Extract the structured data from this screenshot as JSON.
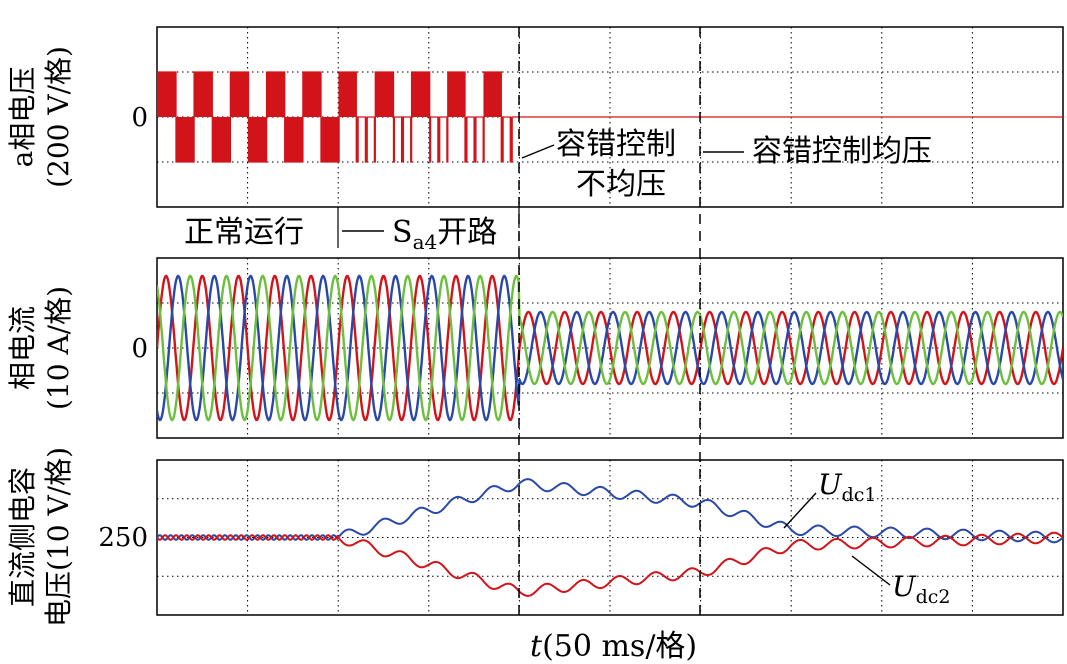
{
  "chart_data": [
    {
      "type": "line",
      "panel": "a-phase-voltage",
      "ylabel_line1": "a相电压",
      "ylabel_line2": "(200 V/格)",
      "ytick": "0",
      "xlim": [
        0,
        500
      ],
      "ylim": [
        -400,
        400
      ],
      "regions": [
        {
          "label": "正常运行",
          "x_start": 0,
          "x_end": 100
        },
        {
          "label_main": "S",
          "label_sub": "a4",
          "label_tail": "开路",
          "x_start": 100,
          "x_end": 200
        }
      ],
      "annotations": [
        {
          "line1": "容错控制",
          "line2": "不均压",
          "x": 200
        },
        {
          "line1": "容错控制均压",
          "x": 300
        }
      ],
      "levels": {
        "high": 200,
        "low": -200
      },
      "series": [
        {
          "color": "#d2141a",
          "description": "PWM voltage, 0 after fault-tolerant control"
        }
      ]
    },
    {
      "type": "line",
      "panel": "phase-current",
      "ylabel_line1": "相电流",
      "ylabel_line2": "(10 A/格)",
      "ytick": "0",
      "xlim": [
        0,
        500
      ],
      "ylim": [
        -25,
        25
      ],
      "amplitude": [
        {
          "x_start": 0,
          "x_end": 200,
          "amp": 20
        },
        {
          "x_start": 200,
          "x_end": 500,
          "amp": 10
        }
      ],
      "series": [
        {
          "color": "#d2141a"
        },
        {
          "color": "#2a48a8"
        },
        {
          "color": "#6cbf3c"
        }
      ]
    },
    {
      "type": "line",
      "panel": "dc-capacitor-voltage",
      "ylabel_line1": "直流侧电容",
      "ylabel_line2": "电压(10 V/格)",
      "ytick": "250",
      "xlim": [
        0,
        500
      ],
      "ylim": [
        230,
        270
      ],
      "xlabel_italic": "t",
      "xlabel_rest": "(50 ms/格)",
      "series": [
        {
          "name_main": "U",
          "name_sub": "dc1",
          "color": "#2a48a8",
          "points": [
            [
              0,
              250
            ],
            [
              100,
              250
            ],
            [
              200,
              264
            ],
            [
              300,
              259
            ],
            [
              350,
              252
            ],
            [
              500,
              250
            ]
          ]
        },
        {
          "name_main": "U",
          "name_sub": "dc2",
          "color": "#d2141a",
          "points": [
            [
              0,
              250
            ],
            [
              100,
              250
            ],
            [
              200,
              236
            ],
            [
              300,
              241
            ],
            [
              350,
              248
            ],
            [
              500,
              250
            ]
          ]
        }
      ]
    }
  ]
}
